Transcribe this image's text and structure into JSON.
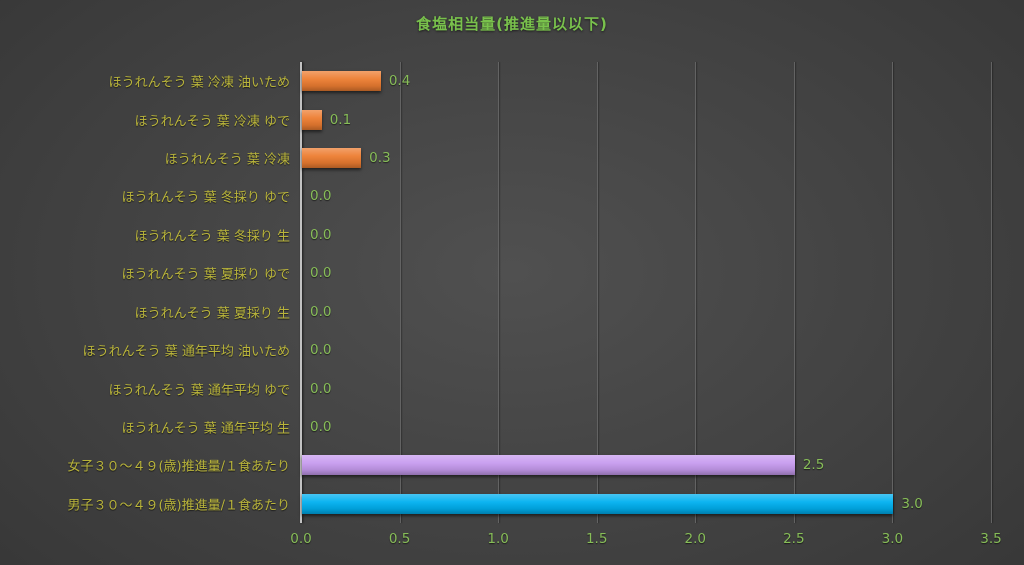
{
  "title": "食塩相当量(推進量以以下)",
  "chart_data": {
    "type": "bar",
    "orientation": "horizontal",
    "title": "食塩相当量(推進量以以下)",
    "categories": [
      "ほうれんそう 葉 冷凍 油いため",
      "ほうれんそう 葉 冷凍 ゆで",
      "ほうれんそう 葉 冷凍",
      "ほうれんそう 葉 冬採り ゆで",
      "ほうれんそう 葉 冬採り 生",
      "ほうれんそう 葉 夏採り ゆで",
      "ほうれんそう 葉 夏採り 生",
      "ほうれんそう 葉 通年平均 油いため",
      "ほうれんそう 葉 通年平均 ゆで",
      "ほうれんそう 葉 通年平均 生",
      "女子３０～４９(歳)推進量/１食あたり",
      "男子３０～４９(歳)推進量/１食あたり"
    ],
    "values": [
      0.4,
      0.1,
      0.3,
      0,
      0,
      0,
      0,
      0,
      0,
      0,
      2.5,
      3.0
    ],
    "value_labels": [
      "0.4",
      "0.1",
      "0.3",
      "0.0",
      "0.0",
      "0.0",
      "0.0",
      "0.0",
      "0.0",
      "0.0",
      "2.5",
      "3.0"
    ],
    "bar_colors": [
      "#ed7d31",
      "#ed7d31",
      "#ed7d31",
      "#ed7d31",
      "#ed7d31",
      "#ed7d31",
      "#ed7d31",
      "#ed7d31",
      "#ed7d31",
      "#ed7d31",
      "#c79bef",
      "#00b0f0"
    ],
    "xlim": [
      0,
      3.5
    ],
    "xticks": [
      0.0,
      0.5,
      1.0,
      1.5,
      2.0,
      2.5,
      3.0,
      3.5
    ],
    "xtick_labels": [
      "0.0",
      "0.5",
      "1.0",
      "1.5",
      "2.0",
      "2.5",
      "3.0",
      "3.5"
    ],
    "grid": true,
    "legend": false
  },
  "colors": {
    "title_text": "#79c14c",
    "category_text": "#b9b43a",
    "value_text": "#87bd58",
    "gridline": "#636363",
    "axis_line": "#c2c2c2",
    "background_center": "#505050",
    "background_edge": "#242424",
    "bar_orange": "#ed7d31",
    "bar_purple": "#c79bef",
    "bar_blue": "#00b0f0"
  }
}
